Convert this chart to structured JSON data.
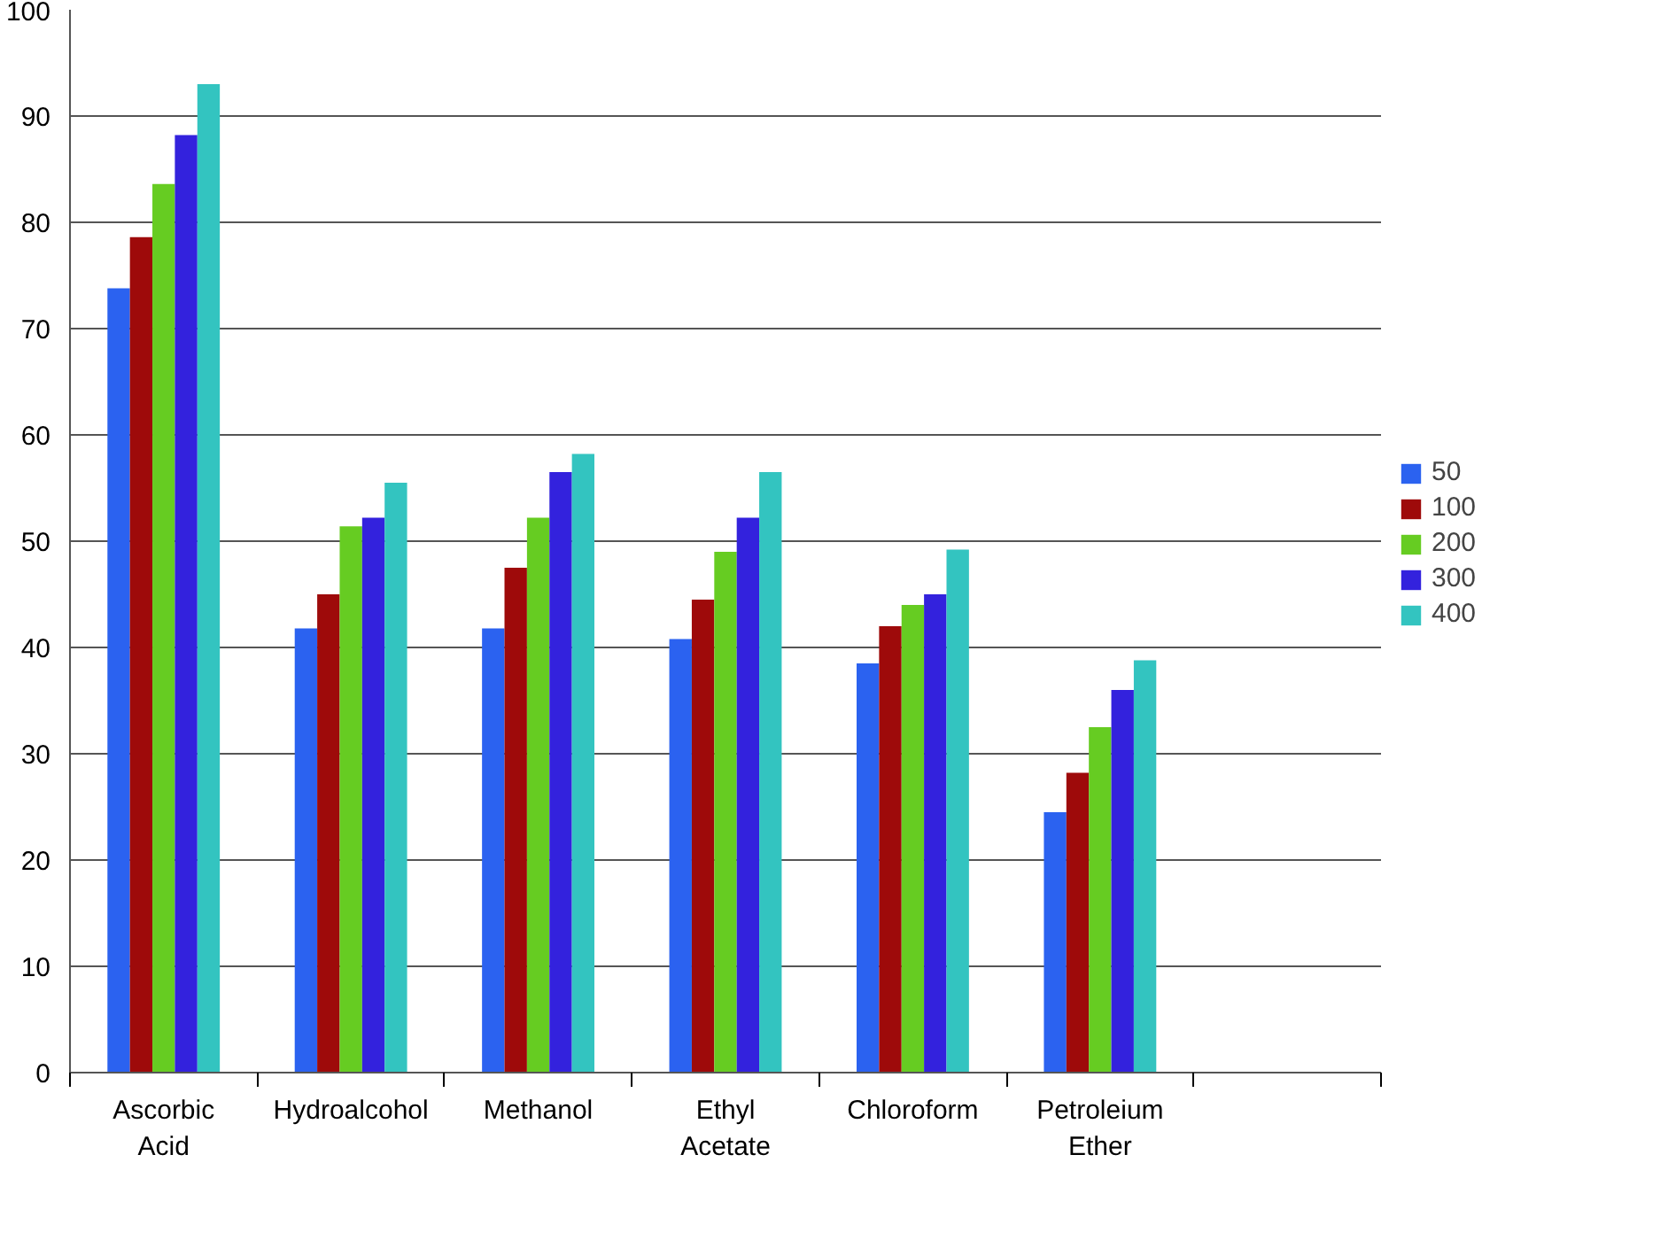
{
  "chart_data": {
    "type": "bar",
    "categories": [
      "Ascorbic\nAcid",
      "Hydroalcohol",
      "Methanol",
      "Ethyl\nAcetate",
      "Chloroform",
      "Petroleium\nEther",
      null
    ],
    "series": [
      {
        "name": "50",
        "color": "#2b62f0",
        "values": [
          73.8,
          41.8,
          41.8,
          40.8,
          38.5,
          24.5,
          null
        ]
      },
      {
        "name": "100",
        "color": "#9e0a0a",
        "values": [
          78.6,
          45.0,
          47.5,
          44.5,
          42.0,
          28.2,
          null
        ]
      },
      {
        "name": "200",
        "color": "#66cc22",
        "values": [
          83.6,
          51.4,
          52.2,
          49.0,
          44.0,
          32.5,
          null
        ]
      },
      {
        "name": "300",
        "color": "#3322dd",
        "values": [
          88.2,
          52.2,
          56.5,
          52.2,
          45.0,
          36.0,
          null
        ]
      },
      {
        "name": "400",
        "color": "#33c4c0",
        "values": [
          93.0,
          55.5,
          58.2,
          56.5,
          49.2,
          38.8,
          null
        ]
      }
    ],
    "ylim": [
      0,
      100
    ],
    "yticks": [
      0,
      10,
      20,
      30,
      40,
      50,
      60,
      70,
      80,
      90,
      100
    ],
    "grid": "y",
    "legend": "right"
  }
}
